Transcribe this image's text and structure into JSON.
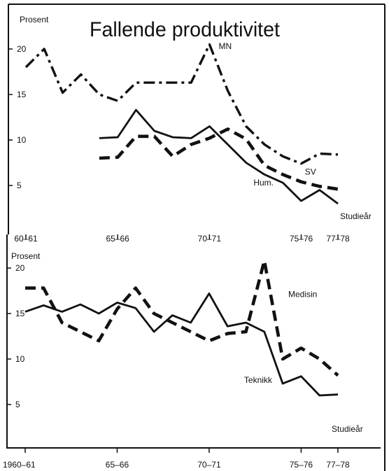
{
  "title": "Fallende produktivitet",
  "chart_data": [
    {
      "type": "line",
      "panel": "top",
      "ylabel": "Prosent",
      "xlabel": "Studieår",
      "ylim": [
        2,
        21
      ],
      "y_ticks": [
        5,
        10,
        15,
        20
      ],
      "x_ticks": [
        {
          "x": 1960,
          "label": "60–61"
        },
        {
          "x": 1965,
          "label": "65–66"
        },
        {
          "x": 1970,
          "label": "70–71"
        },
        {
          "x": 1975,
          "label": "75–76"
        },
        {
          "x": 1977,
          "label": "77–78"
        }
      ],
      "series": [
        {
          "name": "MN",
          "style": "dashdot",
          "label_at": [
            1970.5,
            20.0
          ],
          "points": [
            [
              1960,
              18
            ],
            [
              1961,
              20
            ],
            [
              1962,
              15.2
            ],
            [
              1963,
              17.2
            ],
            [
              1964,
              15
            ],
            [
              1965,
              14.3
            ],
            [
              1966,
              16.3
            ],
            [
              1967,
              16.3
            ],
            [
              1968,
              16.3
            ],
            [
              1969,
              16.3
            ],
            [
              1970,
              20.5
            ],
            [
              1971,
              15.4
            ],
            [
              1972,
              11.5
            ],
            [
              1973,
              9.5
            ],
            [
              1974,
              8.2
            ],
            [
              1975,
              7.4
            ],
            [
              1976,
              8.5
            ],
            [
              1977,
              8.4
            ]
          ]
        },
        {
          "name": "SV",
          "style": "dashed",
          "label_at": [
            1975.2,
            6.2
          ],
          "points": [
            [
              1964,
              8
            ],
            [
              1965,
              8.1
            ],
            [
              1966,
              10.4
            ],
            [
              1967,
              10.4
            ],
            [
              1968,
              8.2
            ],
            [
              1969,
              9.5
            ],
            [
              1970,
              10.2
            ],
            [
              1971,
              11.2
            ],
            [
              1972,
              10.1
            ],
            [
              1973,
              7.2
            ],
            [
              1974,
              6.2
            ],
            [
              1975,
              5.4
            ],
            [
              1976,
              4.9
            ],
            [
              1977,
              4.6
            ]
          ]
        },
        {
          "name": "Hum.",
          "style": "solid",
          "label_at": [
            1972.4,
            5.0
          ],
          "points": [
            [
              1964,
              10.2
            ],
            [
              1965,
              10.3
            ],
            [
              1966,
              13.3
            ],
            [
              1967,
              11
            ],
            [
              1968,
              10.3
            ],
            [
              1969,
              10.2
            ],
            [
              1970,
              11.5
            ],
            [
              1971,
              9.5
            ],
            [
              1972,
              7.5
            ],
            [
              1973,
              6.2
            ],
            [
              1974,
              5.3
            ],
            [
              1975,
              3.3
            ],
            [
              1976,
              4.5
            ],
            [
              1977,
              3
            ]
          ]
        }
      ]
    },
    {
      "type": "line",
      "panel": "bottom",
      "ylabel": "Prosent",
      "xlabel": "Studieår",
      "ylim": [
        3,
        21
      ],
      "y_ticks": [
        5,
        10,
        15,
        20
      ],
      "x_ticks": [
        {
          "x": 1960,
          "label": "1960–61"
        },
        {
          "x": 1965,
          "label": "65–66"
        },
        {
          "x": 1970,
          "label": "70–71"
        },
        {
          "x": 1975,
          "label": "75–76"
        },
        {
          "x": 1977,
          "label": "77–78"
        }
      ],
      "series": [
        {
          "name": "Medisin",
          "style": "dashed",
          "label_at": [
            1974.3,
            16.8
          ],
          "points": [
            [
              1960,
              17.8
            ],
            [
              1961,
              17.8
            ],
            [
              1962,
              14
            ],
            [
              1963,
              13
            ],
            [
              1964,
              12
            ],
            [
              1965,
              15.5
            ],
            [
              1966,
              17.8
            ],
            [
              1967,
              15
            ],
            [
              1968,
              14
            ],
            [
              1969,
              13
            ],
            [
              1970,
              12
            ],
            [
              1971,
              12.8
            ],
            [
              1972,
              13
            ],
            [
              1973,
              20.8
            ],
            [
              1974,
              10
            ],
            [
              1975,
              11.2
            ],
            [
              1976,
              10
            ],
            [
              1977,
              8.2
            ]
          ]
        },
        {
          "name": "Teknikk",
          "style": "solid",
          "label_at": [
            1971.9,
            7.4
          ],
          "points": [
            [
              1960,
              15.2
            ],
            [
              1961,
              15.9
            ],
            [
              1962,
              15.2
            ],
            [
              1963,
              16
            ],
            [
              1964,
              15
            ],
            [
              1965,
              16.2
            ],
            [
              1966,
              15.6
            ],
            [
              1967,
              13
            ],
            [
              1968,
              14.8
            ],
            [
              1969,
              14
            ],
            [
              1970,
              17.2
            ],
            [
              1971,
              13.6
            ],
            [
              1972,
              14
            ],
            [
              1973,
              13
            ],
            [
              1974,
              7.3
            ],
            [
              1975,
              8.1
            ],
            [
              1976,
              6
            ],
            [
              1977,
              6.1
            ]
          ]
        }
      ]
    }
  ]
}
